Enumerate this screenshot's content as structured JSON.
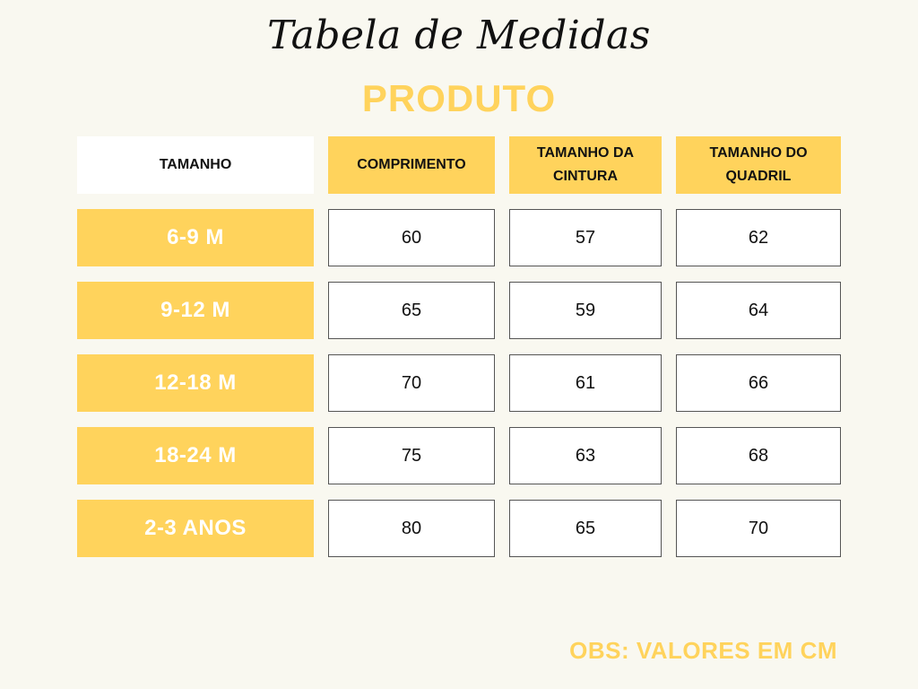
{
  "title": "Tabela de Medidas",
  "subtitle": "PRODUTO",
  "headers": {
    "size": "TAMANHO",
    "length": "COMPRIMENTO",
    "waist": "TAMANHO DA CINTURA",
    "hip": "TAMANHO DO QUADRIL"
  },
  "rows": [
    {
      "size": "6-9 M",
      "length": "60",
      "waist": "57",
      "hip": "62"
    },
    {
      "size": "9-12 M",
      "length": "65",
      "waist": "59",
      "hip": "64"
    },
    {
      "size": "12-18 M",
      "length": "70",
      "waist": "61",
      "hip": "66"
    },
    {
      "size": "18-24 M",
      "length": "75",
      "waist": "63",
      "hip": "68"
    },
    {
      "size": "2-3 ANOS",
      "length": "80",
      "waist": "65",
      "hip": "70"
    }
  ],
  "note": "OBS: VALORES EM CM",
  "colors": {
    "accent": "#ffd35c",
    "background": "#f9f8f0",
    "cell_border": "#555555"
  }
}
